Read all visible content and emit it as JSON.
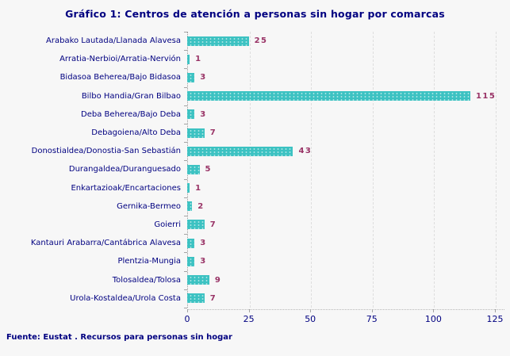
{
  "title": "Gráfico 1: Centros de atención a personas sin hogar por comarcas",
  "footer": "Fuente: Eustat . Recursos para personas sin hogar",
  "colors": {
    "title_text": "#000080",
    "category_label_text": "#000080",
    "value_label_text": "#993366",
    "bar_fill": "#3CC2C2",
    "gridline": "#DEDEDE",
    "axis_tick": "#A3A3A3",
    "background": "#F7F7F7"
  },
  "chart_data": {
    "type": "bar",
    "orientation": "horizontal",
    "title": "Gráfico 1: Centros de atención a personas sin hogar por comarcas",
    "categories": [
      "Arabako Lautada/Llanada Alavesa",
      "Arratia-Nerbioi/Arratia-Nervión",
      "Bidasoa Beherea/Bajo Bidasoa",
      "Bilbo Handia/Gran Bilbao",
      "Deba Beherea/Bajo Deba",
      "Debagoiena/Alto Deba",
      "Donostialdea/Donostia-San Sebastián",
      "Durangaldea/Duranguesado",
      "Enkartazioak/Encartaciones",
      "Gernika-Bermeo",
      "Goierri",
      "Kantauri Arabarra/Cantábrica Alavesa",
      "Plentzia-Mungia",
      "Tolosaldea/Tolosa",
      "Urola-Kostaldea/Urola Costa"
    ],
    "values": [
      25,
      1,
      3,
      115,
      3,
      7,
      43,
      5,
      1,
      2,
      7,
      3,
      3,
      9,
      7
    ],
    "xlabel": "",
    "ylabel": "",
    "xlim": [
      0,
      125
    ],
    "x_ticks": [
      0,
      25,
      50,
      75,
      100,
      125
    ],
    "grid": "vertical-dashed",
    "legend": "none",
    "value_labels": "end-of-bar",
    "source_note": "Fuente: Eustat . Recursos para personas sin hogar"
  }
}
